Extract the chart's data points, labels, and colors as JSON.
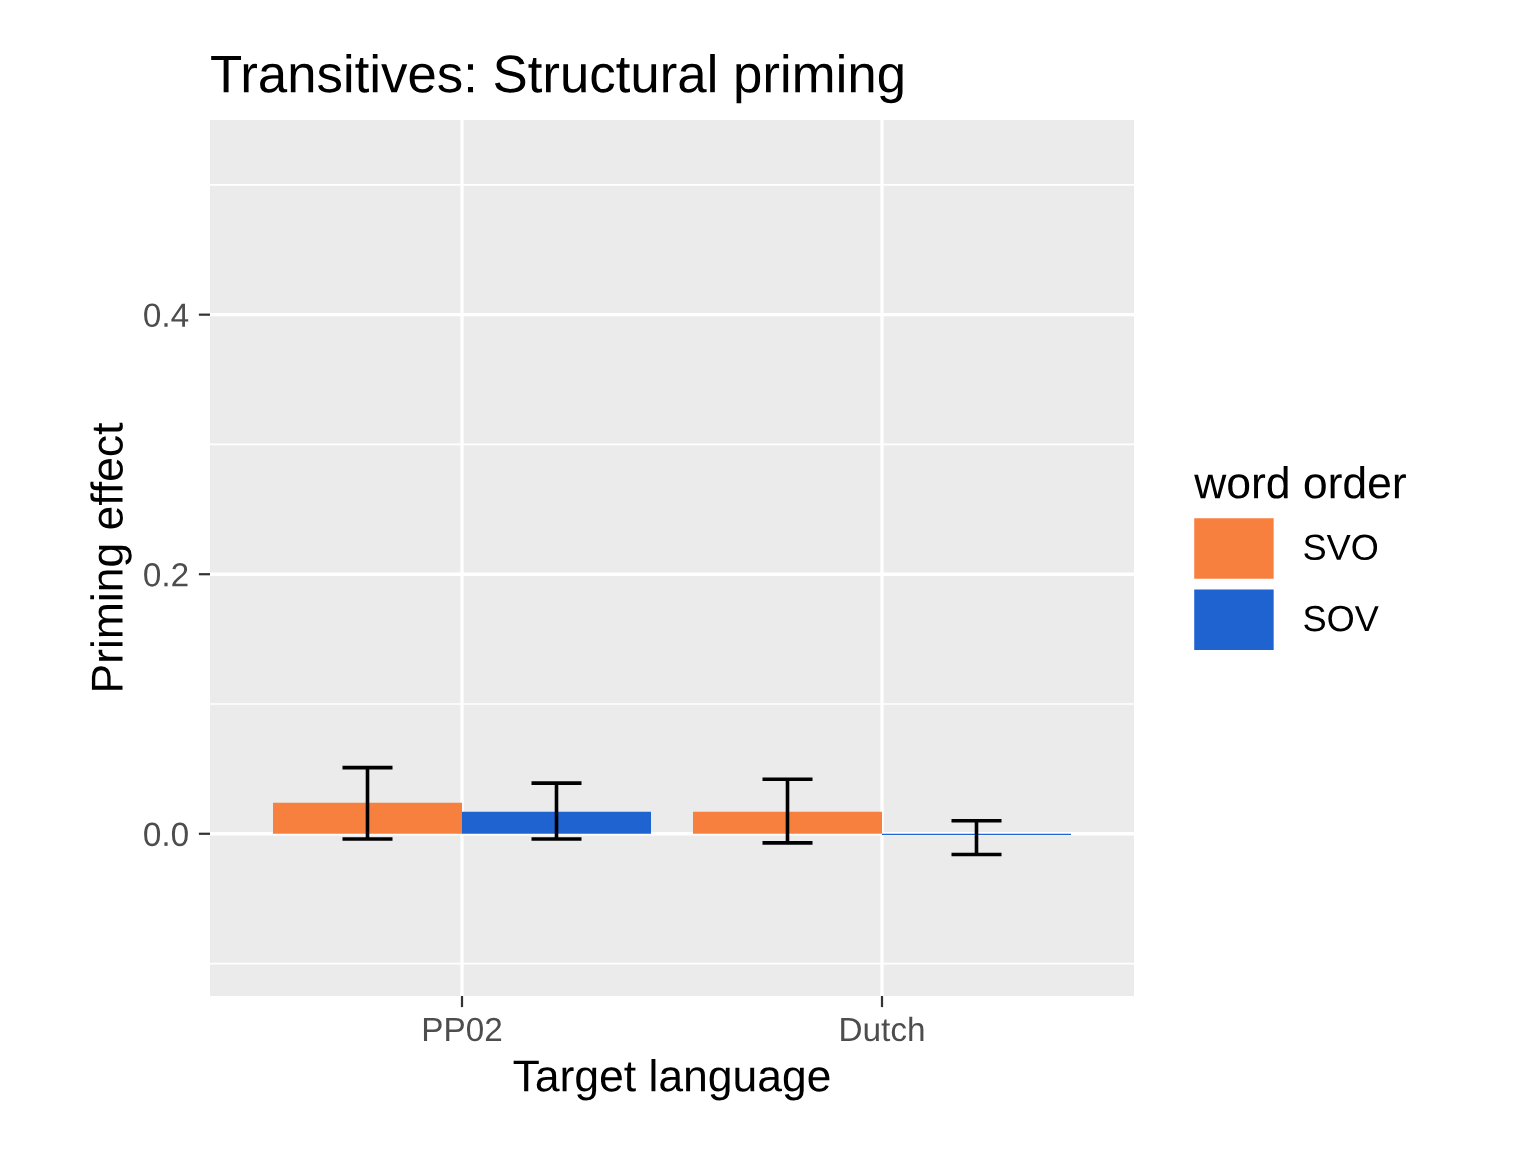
{
  "chart_data": {
    "type": "bar",
    "title": "Transitives: Structural priming",
    "xlabel": "Target language",
    "ylabel": "Priming effect",
    "legend_title": "word order",
    "categories": [
      "PP02",
      "Dutch"
    ],
    "series": [
      {
        "name": "SVO",
        "color": "#f8803f",
        "values": [
          0.024,
          0.017
        ],
        "errors": [
          [
            -0.004,
            0.051
          ],
          [
            -0.007,
            0.042
          ]
        ]
      },
      {
        "name": "SOV",
        "color": "#1f63d1",
        "values": [
          0.017,
          -0.001
        ],
        "errors": [
          [
            -0.004,
            0.039
          ],
          [
            -0.016,
            0.01
          ]
        ]
      }
    ],
    "ylim": [
      -0.125,
      0.55
    ],
    "yticks": [
      {
        "value": 0,
        "label": "0.0"
      },
      0.2,
      0.4
    ],
    "grid": true,
    "legend": "right"
  }
}
